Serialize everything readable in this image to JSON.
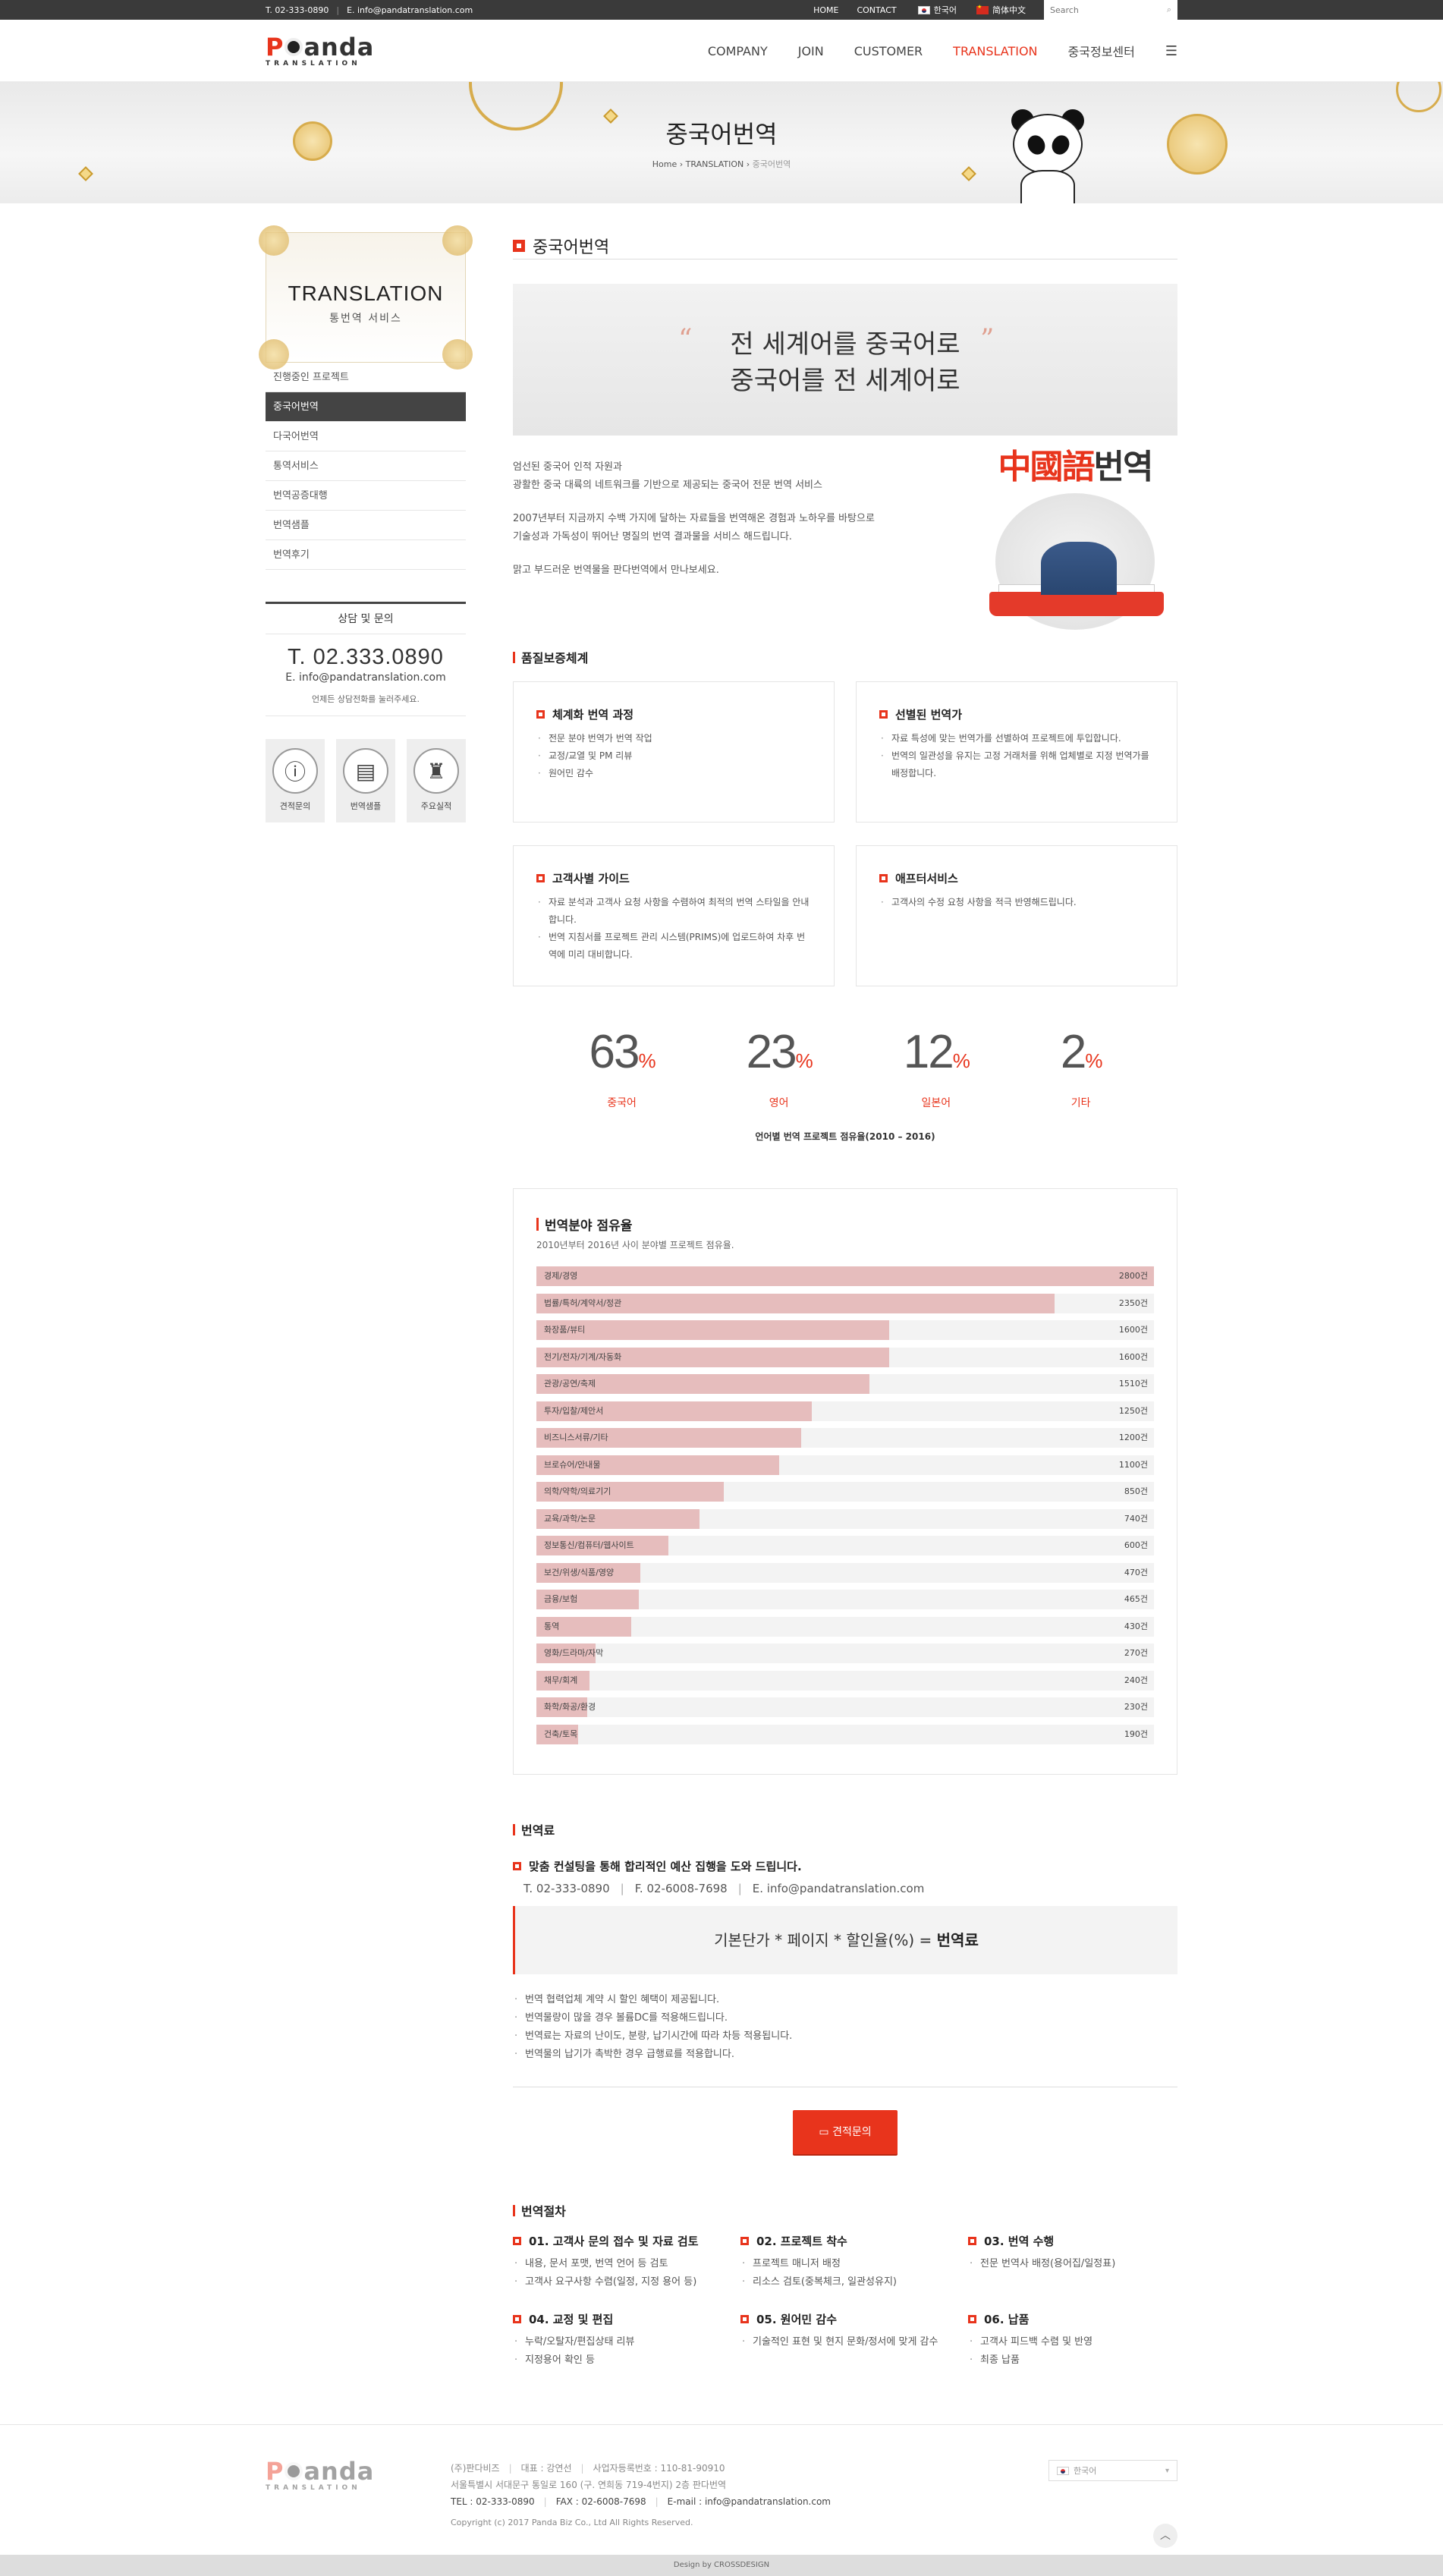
{
  "topbar": {
    "tel": "T. 02-333-0890",
    "email": "E. info@pandatranslation.com",
    "links": [
      "HOME",
      "CONTACT"
    ],
    "langs": [
      "한국어",
      "简体中文"
    ],
    "search_placeholder": "Search"
  },
  "header": {
    "logo_word": "anda",
    "logo_p": "P",
    "logo_sub": "TRANSLATION",
    "nav": [
      "COMPANY",
      "JOIN",
      "CUSTOMER",
      "TRANSLATION",
      "중국정보센터"
    ],
    "nav_active": "TRANSLATION",
    "menu_icon": "☰"
  },
  "hero": {
    "title": "중국어번역",
    "breadcrumb": {
      "home": "Home",
      "parent": "TRANSLATION",
      "current": "중국어번역",
      "sep": " › "
    }
  },
  "sidebar": {
    "title": "TRANSLATION",
    "subtitle": "통번역 서비스",
    "menu": [
      "진행중인 프로젝트",
      "중국어번역",
      "다국어번역",
      "통역서비스",
      "번역공증대행",
      "번역샘플",
      "번역후기"
    ],
    "active_index": 1,
    "consult": {
      "heading": "상담 및 문의",
      "tel": "T. 02.333.0890",
      "email": "E. info@pandatranslation.com",
      "note": "언제든 상담전화를 눌러주세요."
    },
    "quick": [
      {
        "label": "견적문의",
        "icon": "info-icon"
      },
      {
        "label": "번역샘플",
        "icon": "certificate-icon"
      },
      {
        "label": "주요실적",
        "icon": "trophy-icon"
      }
    ]
  },
  "content": {
    "title": "중국어번역",
    "quote": {
      "line1": "전 세계어를 중국어로",
      "line2": "중국어를 전 세계어로",
      "open": "“",
      "close": "”"
    },
    "intro": {
      "p1a": "엄선된 중국어 인적 자원과",
      "p1b": "광활한 중국 대륙의 네트워크를 기반으로 제공되는 중국어 전문 번역 서비스",
      "p2a": "2007년부터 지금까지 수백 가지에 달하는 자료들을 번역해온 경험과 노하우를 바탕으로",
      "p2b": "기술성과 가독성이 뛰어난 명질의 번역 결과물을 서비스 해드립니다.",
      "p3": "맑고 부드러운 번역물을 판다번역에서 만나보세요.",
      "img_text_red": "中國語",
      "img_text_dark": "번역"
    },
    "quality": {
      "title": "품질보증체계",
      "cards": [
        {
          "title": "체계화 번역 과정",
          "items": [
            "전문 분야 번역가 번역 작업",
            "교정/교열 및 PM 리뷰",
            "원어민 감수"
          ]
        },
        {
          "title": "선별된 번역가",
          "items": [
            "자료 특성에 맞는 번역가를 선별하여 프로젝트에 투입합니다.",
            "번역의 일관성을 유지는 고정 거래처를 위해 업체별로 지정 번역가를 배정합니다."
          ]
        },
        {
          "title": "고객사별 가이드",
          "items": [
            "자료 분석과 고객사 요청 사항을 수렴하여 최적의 번역 스타일을 안내합니다.",
            "번역 지침서를 프로젝트 관리 시스템(PRIMS)에 업로드하여 차후 번역에 미리 대비합니다."
          ]
        },
        {
          "title": "애프터서비스",
          "items": [
            "고객사의 수정 요청 사항을 적극 반영해드립니다."
          ]
        }
      ]
    },
    "stats": {
      "items": [
        {
          "value": "63",
          "unit": "%",
          "label": "중국어"
        },
        {
          "value": "23",
          "unit": "%",
          "label": "영어"
        },
        {
          "value": "12",
          "unit": "%",
          "label": "일본어"
        },
        {
          "value": "2",
          "unit": "%",
          "label": "기타"
        }
      ],
      "caption": "언어별 번역 프로젝트 점유율(2010 – 2016)"
    },
    "fee": {
      "title": "번역료",
      "lead": "맞춤 컨설팅을 통해 합리적인 예산 집행을 도와 드립니다.",
      "tel": "T. 02-333-0890",
      "fax": "F. 02-6008-7698",
      "email": "E. info@pandatranslation.com",
      "formula_prefix": "기본단가 * 페이지 * 할인율(%) = ",
      "formula_bold": "번역료",
      "notes": [
        "번역 협력업체 계약 시 할인 혜택이 제공됩니다.",
        "번역물량이 많을 경우 볼륨DC를 적용해드립니다.",
        "번역료는 자료의 난이도, 분량, 납기시간에 따라 차등 적용됩니다.",
        "번역물의 납기가 촉박한 경우 급행료를 적용합니다."
      ],
      "button": "견적문의"
    },
    "process": {
      "title": "번역절차",
      "steps": [
        {
          "title": "01. 고객사 문의 접수 및 자료 검토",
          "items": [
            "내용, 문서 포맷, 번역 언어 등 검토",
            "고객사 요구사항 수렴(일정, 지정 용어 등)"
          ]
        },
        {
          "title": "02. 프로젝트 착수",
          "items": [
            "프로젝트 매니저 배정",
            "리소스 검토(중복체크, 일관성유지)"
          ]
        },
        {
          "title": "03. 번역 수행",
          "items": [
            "전문 번역사 배정(용어집/일정표)"
          ]
        },
        {
          "title": "04. 교정 및 편집",
          "items": [
            "누락/오탈자/편집상태 리뷰",
            "지정용어 확인 등"
          ]
        },
        {
          "title": "05. 원어민 감수",
          "items": [
            "기술적인 표현 및 현지 문화/정서에 맞게 감수"
          ]
        },
        {
          "title": "06. 납품",
          "items": [
            "고객사 피드백 수렴 및 반영",
            "최종 납품"
          ]
        }
      ]
    }
  },
  "chart_data": {
    "type": "bar",
    "orientation": "horizontal",
    "title": "번역분야 점유율",
    "subtitle": "2010년부터 2016년 사이 분야별 프로젝트 점유율.",
    "unit": "건",
    "xlim": [
      0,
      2800
    ],
    "categories": [
      "경제/경영",
      "법률/특허/계약서/정관",
      "화장품/뷰티",
      "전기/전자/기계/자동화",
      "관광/공연/축제",
      "투자/입찰/제안서",
      "비즈니스서류/기타",
      "브로슈어/안내물",
      "의학/약학/의료기기",
      "교육/과학/논문",
      "정보통신/컴퓨터/웹사이트",
      "보건/위생/식품/영양",
      "금융/보험",
      "통역",
      "영화/드라마/자막",
      "채무/회계",
      "화학/화공/환경",
      "건축/토목"
    ],
    "values": [
      2800,
      2350,
      1600,
      1600,
      1510,
      1250,
      1200,
      1100,
      850,
      740,
      600,
      470,
      465,
      430,
      270,
      240,
      230,
      190
    ]
  },
  "footer": {
    "company": "(주)판다비즈",
    "ceo": "대표 : 강연선",
    "bizno": "사업자등록번호 : 110-81-90910",
    "address": "서울특별시 서대문구 통일로 160 (구. 연희동 719-4번지) 2층 판다번역",
    "tel": "TEL : 02-333-0890",
    "fax": "FAX : 02-6008-7698",
    "email": "E-mail : info@pandatranslation.com",
    "copyright": "Copyright (c) 2017 Panda Biz Co., Ltd All Rights Reserved.",
    "lang_select": "한국어",
    "design": "Design by CROSSDESIGN"
  },
  "colors": {
    "accent": "#e8341c",
    "bar_fill": "#e6bdbd",
    "bar_track": "#f3f3f3"
  }
}
